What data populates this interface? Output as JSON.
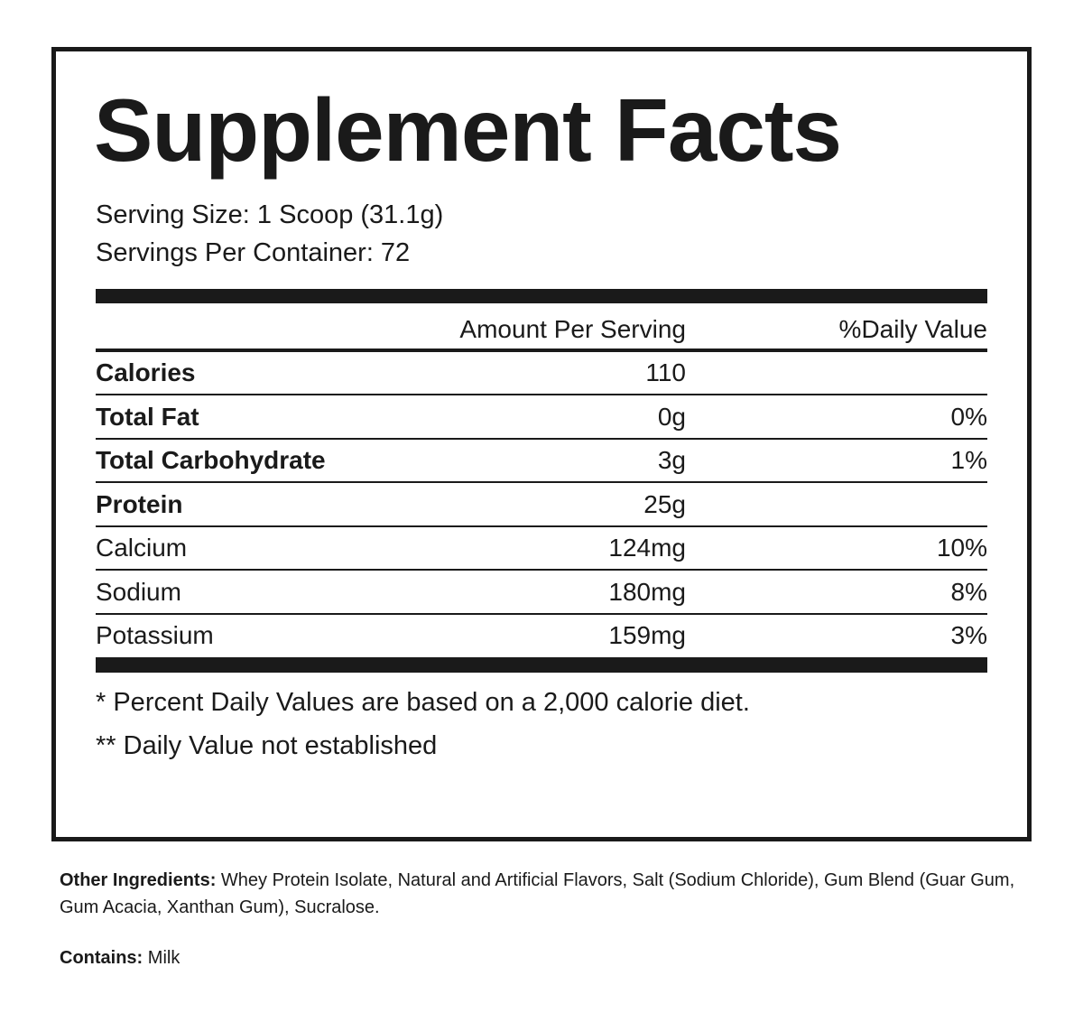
{
  "title": "Supplement Facts",
  "serving_size": "Serving Size: 1 Scoop (31.1g)",
  "servings_per_container": "Servings Per Container: 72",
  "table": {
    "header": {
      "amount": "Amount Per Serving",
      "daily_value": "%Daily Value"
    },
    "rows": [
      {
        "name": "Calories",
        "amount": "110",
        "bold": true
      },
      {
        "name": "Total Fat",
        "amount": "0g",
        "daily_value": "0%",
        "bold": true
      },
      {
        "name": "Total Carbohydrate",
        "amount": "3g",
        "daily_value": "1%",
        "bold": true
      },
      {
        "name": "Protein",
        "amount": "25g",
        "bold": true
      },
      {
        "name": "Calcium",
        "amount": "124mg",
        "daily_value": "10%",
        "bold": false
      },
      {
        "name": "Sodium",
        "amount": "180mg",
        "daily_value": "8%",
        "bold": false
      },
      {
        "name": "Potassium",
        "amount": "159mg",
        "daily_value": "3%",
        "bold": false
      }
    ]
  },
  "footnotes": [
    "* Percent Daily Values are based on a 2,000 calorie diet.",
    "** Daily Value not established"
  ],
  "other_ingredients": {
    "label": "Other Ingredients:",
    "text": "Whey Protein Isolate, Natural and Artificial Flavors, Salt (Sodium Chloride), Gum Blend (Guar Gum, Gum Acacia, Xanthan Gum), Sucralose."
  },
  "contains": {
    "label": "Contains:",
    "text": "Milk"
  }
}
